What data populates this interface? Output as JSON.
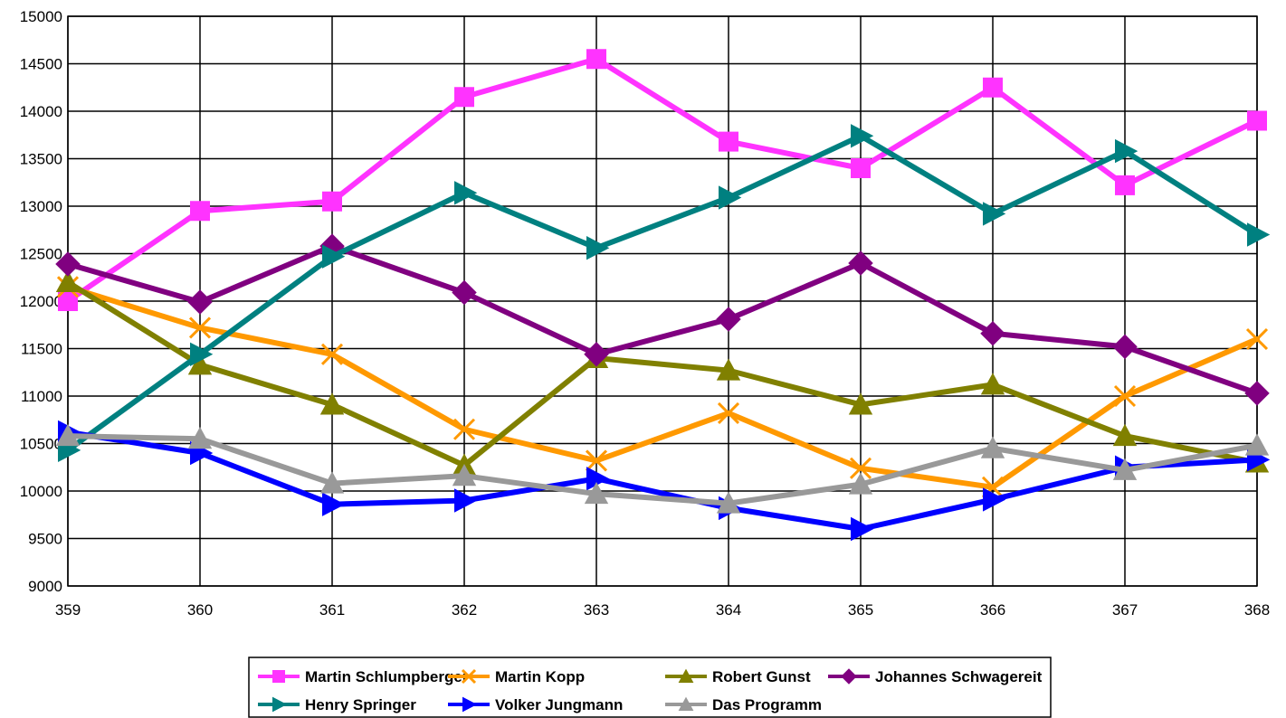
{
  "chart_data": {
    "type": "line",
    "title": "",
    "xlabel": "",
    "ylabel": "",
    "x": [
      359,
      360,
      361,
      362,
      363,
      364,
      365,
      366,
      367,
      368
    ],
    "ylim": [
      9000,
      15000
    ],
    "ytick_step": 500,
    "grid": true,
    "legend_position": "bottom",
    "series": [
      {
        "name": "Martin Schlumpberger",
        "color": "#ff33ff",
        "marker": "square",
        "values": [
          12000,
          12950,
          13050,
          14150,
          14550,
          13680,
          13400,
          14250,
          13220,
          13900
        ]
      },
      {
        "name": "Martin Kopp",
        "color": "#ff9900",
        "marker": "x",
        "values": [
          12150,
          11720,
          11440,
          10650,
          10320,
          10820,
          10240,
          10040,
          11000,
          11600
        ]
      },
      {
        "name": "Robert Gunst",
        "color": "#808000",
        "marker": "triangle-up",
        "values": [
          12200,
          11330,
          10910,
          10270,
          11400,
          11270,
          10910,
          11120,
          10580,
          10300
        ]
      },
      {
        "name": "Johannes Schwagereit",
        "color": "#800080",
        "marker": "diamond",
        "values": [
          12390,
          11990,
          12580,
          12090,
          11440,
          11810,
          12400,
          11660,
          11520,
          11030
        ]
      },
      {
        "name": "Henry Springer",
        "color": "#008080",
        "marker": "triangle-right",
        "values": [
          10430,
          11440,
          12470,
          13140,
          12560,
          13090,
          13740,
          12920,
          13580,
          12700
        ]
      },
      {
        "name": "Volker Jungmann",
        "color": "#0000ff",
        "marker": "triangle-right",
        "values": [
          10620,
          10400,
          9860,
          9900,
          10130,
          9820,
          9600,
          9910,
          10250,
          10330
        ]
      },
      {
        "name": "Das Programm",
        "color": "#999999",
        "marker": "triangle-up",
        "values": [
          10580,
          10550,
          10080,
          10160,
          9970,
          9870,
          10070,
          10450,
          10220,
          10480
        ]
      }
    ]
  }
}
